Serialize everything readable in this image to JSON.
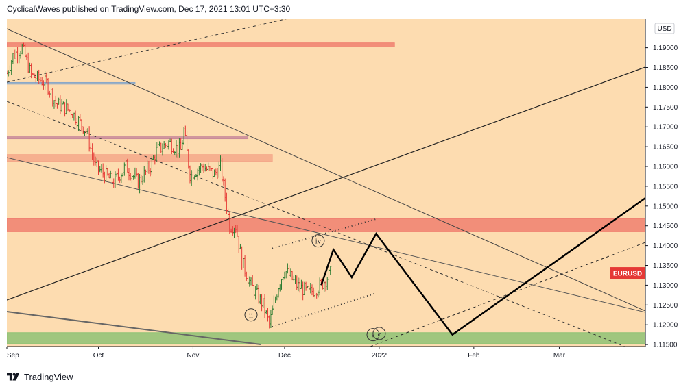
{
  "header": {
    "attribution": "CyclicalWaves published on TradingView.com, Dec 17, 2021 13:01 UTC+3:30"
  },
  "footer": {
    "brand": "TradingView",
    "logo_icon": "tradingview-logo-icon"
  },
  "chart_data": {
    "type": "candlestick",
    "symbol": "EURUSD",
    "currency_label": "USD",
    "colors": {
      "background": "#fddcb0",
      "up": "#2e7d32",
      "down": "#e53935",
      "symbol_badge": "#e53935",
      "support_zone": "#8fc275",
      "resistance_zone": "#f08070",
      "projection": "#000000"
    },
    "y_ticks": [
      "1.19000",
      "1.18500",
      "1.18000",
      "1.17500",
      "1.17000",
      "1.16500",
      "1.16000",
      "1.15500",
      "1.15000",
      "1.14500",
      "1.14000",
      "1.13500",
      "1.13000",
      "1.12500",
      "1.12000",
      "1.11500"
    ],
    "x_ticks": [
      "Sep",
      "Oct",
      "Nov",
      "Dec",
      "2022",
      "Feb",
      "Mar"
    ],
    "ylim": [
      1.1145,
      1.1972
    ],
    "last_price": "1.1330",
    "price_path": [
      [
        "2021-09-01",
        1.1835
      ],
      [
        "2021-09-03",
        1.188
      ],
      [
        "2021-09-06",
        1.19
      ],
      [
        "2021-09-09",
        1.183
      ],
      [
        "2021-09-14",
        1.181
      ],
      [
        "2021-09-17",
        1.176
      ],
      [
        "2021-09-22",
        1.174
      ],
      [
        "2021-09-27",
        1.169
      ],
      [
        "2021-09-30",
        1.16
      ],
      [
        "2021-10-06",
        1.156
      ],
      [
        "2021-10-10",
        1.16
      ],
      [
        "2021-10-14",
        1.156
      ],
      [
        "2021-10-18",
        1.16
      ],
      [
        "2021-10-20",
        1.164
      ],
      [
        "2021-10-24",
        1.166
      ],
      [
        "2021-10-28",
        1.164
      ],
      [
        "2021-10-29",
        1.169
      ],
      [
        "2021-10-31",
        1.158
      ],
      [
        "2021-11-04",
        1.16
      ],
      [
        "2021-11-08",
        1.158
      ],
      [
        "2021-11-10",
        1.16
      ],
      [
        "2021-11-13",
        1.145
      ],
      [
        "2021-11-15",
        1.145
      ],
      [
        "2021-11-17",
        1.136
      ],
      [
        "2021-11-20",
        1.13
      ],
      [
        "2021-11-24",
        1.125
      ],
      [
        "2021-11-26",
        1.12
      ],
      [
        "2021-11-29",
        1.13
      ],
      [
        "2021-12-01",
        1.134
      ],
      [
        "2021-12-05",
        1.13
      ],
      [
        "2021-12-09",
        1.128
      ],
      [
        "2021-12-13",
        1.13
      ],
      [
        "2021-12-16",
        1.133
      ]
    ],
    "zones": [
      {
        "from": 1.1902,
        "to": 1.1912,
        "start": "2021-09-01",
        "end": "2022-01-06",
        "color": "#f08070"
      },
      {
        "from": 1.1808,
        "to": 1.1812,
        "start": "2021-09-01",
        "end": "2021-10-13",
        "color": "#8aa8c8"
      },
      {
        "from": 1.167,
        "to": 1.1677,
        "start": "2021-09-01",
        "end": "2021-11-19",
        "color": "#c98a9a"
      },
      {
        "from": 1.1613,
        "to": 1.163,
        "start": "2021-09-01",
        "end": "2021-11-27",
        "color": "#f4a88a"
      },
      {
        "from": 1.1435,
        "to": 1.1468,
        "start": "2021-09-01",
        "end": "2022-03-31",
        "color": "#f08070"
      },
      {
        "from": 1.1152,
        "to": 1.118,
        "start": "2021-09-01",
        "end": "2022-03-31",
        "color": "#8fc275"
      }
    ],
    "projection_path": [
      [
        "2021-12-13",
        1.13
      ],
      [
        "2021-12-17",
        1.139
      ],
      [
        "2021-12-23",
        1.132
      ],
      [
        "2021-12-31",
        1.143
      ],
      [
        "2022-01-25",
        1.1175
      ],
      [
        "2022-03-31",
        1.153
      ]
    ],
    "wave_labels": [
      {
        "text": "ii",
        "date": "2021-11-20",
        "price": 1.1225
      },
      {
        "text": "iv",
        "date": "2021-12-12",
        "price": 1.1412
      },
      {
        "text": "v",
        "date": "2021-12-30",
        "price": 1.1175
      },
      {
        "text": "c",
        "date": "2022-01-01",
        "price": 1.1178
      }
    ]
  }
}
